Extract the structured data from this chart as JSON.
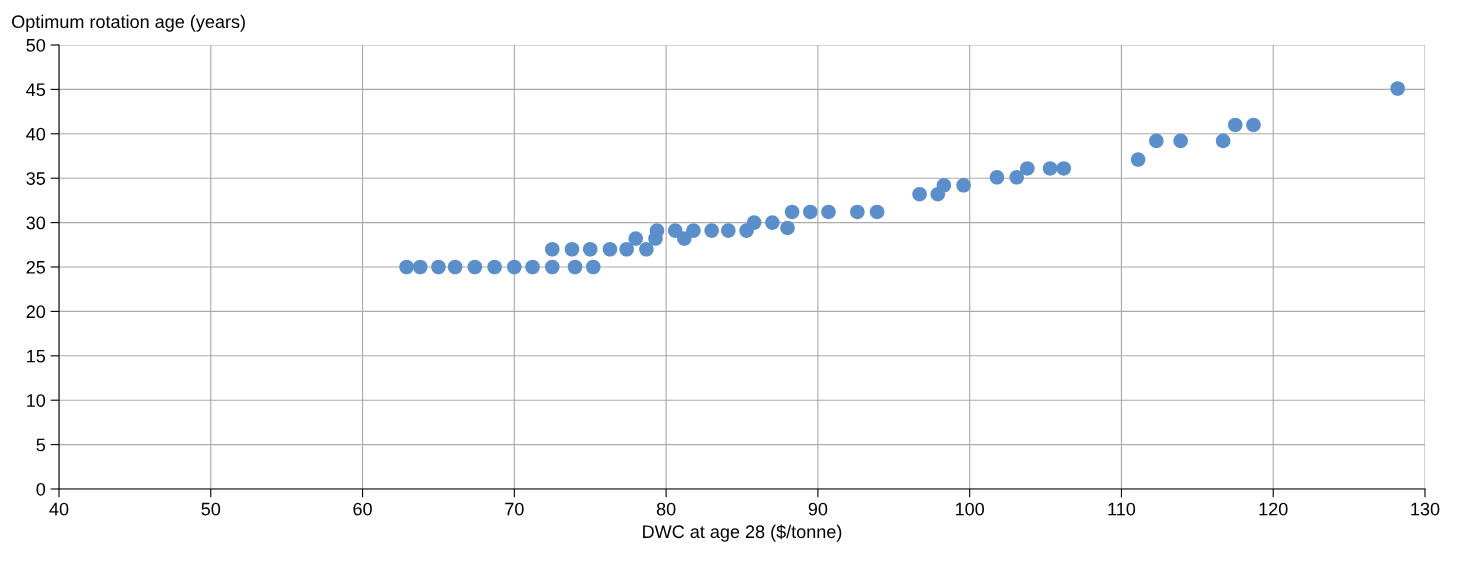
{
  "chart_data": {
    "type": "scatter",
    "xlabel": "DWC at age 28 ($/tonne)",
    "ylabel": "Optimum rotation age (years)",
    "x": [
      62.9,
      63.8,
      65.0,
      66.1,
      67.4,
      68.7,
      70.0,
      71.2,
      72.5,
      74.0,
      75.2,
      72.5,
      73.8,
      75.0,
      76.3,
      77.4,
      78.7,
      78.0,
      79.3,
      81.2,
      79.4,
      80.6,
      81.8,
      83.0,
      84.1,
      85.3,
      88.0,
      85.8,
      87.0,
      88.3,
      89.5,
      90.7,
      92.6,
      93.9,
      96.7,
      97.9,
      98.3,
      99.6,
      101.8,
      103.1,
      103.8,
      105.3,
      106.2,
      111.1,
      112.3,
      113.9,
      116.7,
      117.5,
      118.7,
      128.2
    ],
    "values": [
      25,
      25,
      25,
      25,
      25,
      25,
      25,
      25,
      25,
      25,
      25,
      27,
      27,
      27,
      27,
      27,
      27,
      28.2,
      28.2,
      28.2,
      29.1,
      29.1,
      29.1,
      29.1,
      29.1,
      29.1,
      29.4,
      30,
      30,
      31.2,
      31.2,
      31.2,
      31.2,
      31.2,
      33.2,
      33.2,
      34.2,
      34.2,
      35.1,
      35.1,
      36.1,
      36.1,
      36.1,
      37.1,
      39.2,
      39.2,
      39.2,
      41,
      41,
      45.1
    ],
    "color": "#5b8fcb",
    "marker": "circle",
    "xlim": [
      40,
      130
    ],
    "xticks": [
      40,
      50,
      60,
      70,
      80,
      90,
      100,
      110,
      120,
      130
    ],
    "ylim": [
      0,
      50
    ],
    "yticks": [
      0,
      5,
      10,
      15,
      20,
      25,
      30,
      35,
      40,
      45,
      50
    ],
    "grid": true
  }
}
